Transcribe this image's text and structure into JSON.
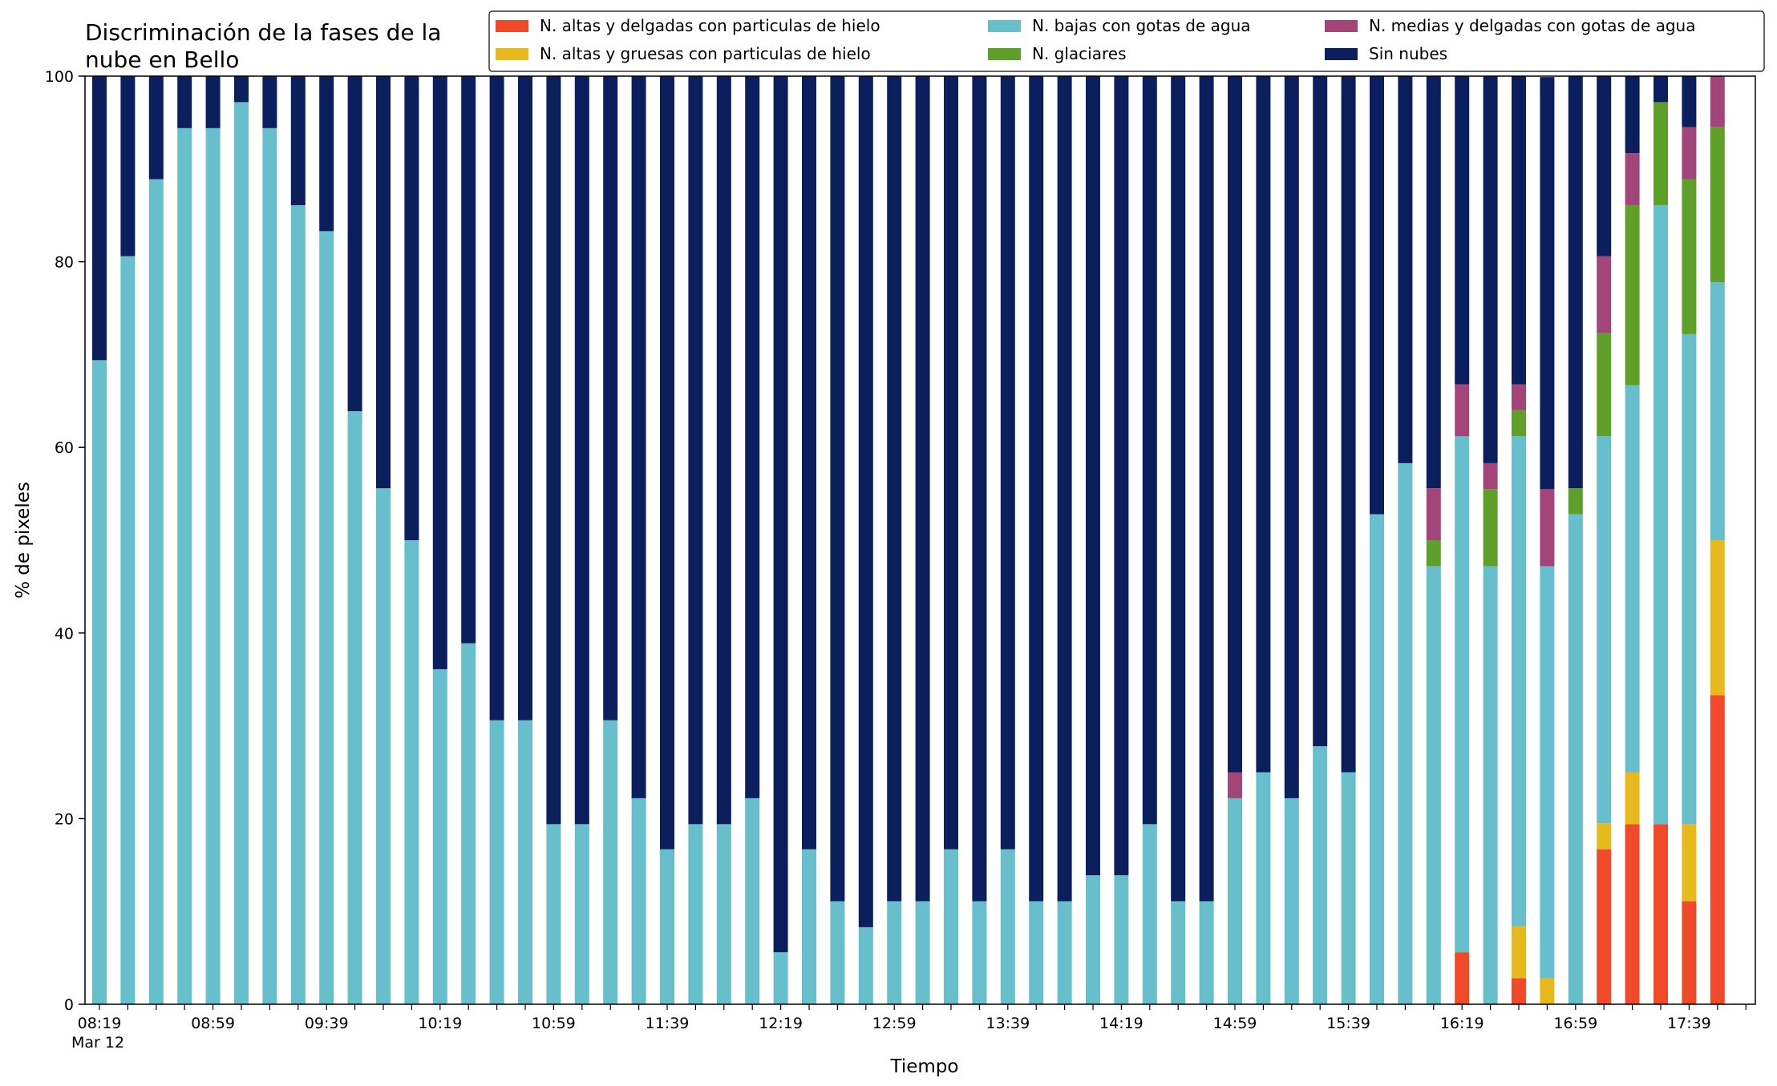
{
  "chart_data": {
    "type": "bar",
    "stacked": true,
    "title_lines": [
      "Discriminación de la fases de la",
      "nube en Bello"
    ],
    "xlabel": "Tiempo",
    "ylabel": "% de pixeles",
    "ylim": [
      0,
      100
    ],
    "yticks": [
      0,
      20,
      40,
      60,
      80,
      100
    ],
    "grid": false,
    "legend_placement": "top-right",
    "x": [
      "08:19",
      "08:29",
      "08:39",
      "08:49",
      "08:59",
      "09:09",
      "09:19",
      "09:29",
      "09:39",
      "09:49",
      "09:59",
      "10:09",
      "10:19",
      "10:29",
      "10:39",
      "10:49",
      "10:59",
      "11:09",
      "11:19",
      "11:29",
      "11:39",
      "11:49",
      "11:59",
      "12:09",
      "12:19",
      "12:29",
      "12:39",
      "12:49",
      "12:59",
      "13:09",
      "13:19",
      "13:29",
      "13:39",
      "13:49",
      "13:59",
      "14:09",
      "14:19",
      "14:29",
      "14:39",
      "14:49",
      "14:59",
      "15:09",
      "15:19",
      "15:29",
      "15:39",
      "15:49",
      "15:59",
      "16:09",
      "16:19",
      "16:29",
      "16:39",
      "16:49",
      "16:59",
      "17:09",
      "17:19",
      "17:29",
      "17:39",
      "17:49"
    ],
    "xtick_labels": [
      {
        "index": 0,
        "label": "08:19",
        "sublabel": "Mar 12"
      },
      {
        "index": 4,
        "label": "08:59"
      },
      {
        "index": 8,
        "label": "09:39"
      },
      {
        "index": 12,
        "label": "10:19"
      },
      {
        "index": 16,
        "label": "10:59"
      },
      {
        "index": 20,
        "label": "11:39"
      },
      {
        "index": 24,
        "label": "12:19"
      },
      {
        "index": 28,
        "label": "12:59"
      },
      {
        "index": 32,
        "label": "13:39"
      },
      {
        "index": 36,
        "label": "14:19"
      },
      {
        "index": 40,
        "label": "14:59"
      },
      {
        "index": 44,
        "label": "15:39"
      },
      {
        "index": 48,
        "label": "16:19"
      },
      {
        "index": 52,
        "label": "16:59"
      },
      {
        "index": 56,
        "label": "17:39"
      }
    ],
    "series": [
      {
        "name": "N. altas y delgadas con particulas de hielo",
        "color": "#f04a2b",
        "values": [
          0,
          0,
          0,
          0,
          0,
          0,
          0,
          0,
          0,
          0,
          0,
          0,
          0,
          0,
          0,
          0,
          0,
          0,
          0,
          0,
          0,
          0,
          0,
          0,
          0,
          0,
          0,
          0,
          0,
          0,
          0,
          0,
          0,
          0,
          0,
          0,
          0,
          0,
          0,
          0,
          0,
          0,
          0,
          0,
          0,
          0,
          0,
          0,
          5.6,
          0,
          2.8,
          0,
          0,
          16.7,
          19.4,
          19.4,
          11.1,
          33.3
        ]
      },
      {
        "name": "N. altas y gruesas con particulas de hielo",
        "color": "#e8b91c",
        "values": [
          0,
          0,
          0,
          0,
          0,
          0,
          0,
          0,
          0,
          0,
          0,
          0,
          0,
          0,
          0,
          0,
          0,
          0,
          0,
          0,
          0,
          0,
          0,
          0,
          0,
          0,
          0,
          0,
          0,
          0,
          0,
          0,
          0,
          0,
          0,
          0,
          0,
          0,
          0,
          0,
          0,
          0,
          0,
          0,
          0,
          0,
          0,
          0,
          0,
          0,
          5.6,
          2.8,
          0,
          2.8,
          5.6,
          0,
          8.3,
          16.7
        ]
      },
      {
        "name": "N. bajas con gotas de agua",
        "color": "#66bfca",
        "values": [
          69.4,
          80.6,
          88.9,
          94.4,
          94.4,
          97.2,
          94.4,
          86.1,
          83.3,
          63.9,
          55.6,
          50,
          36.1,
          38.9,
          30.6,
          30.6,
          19.4,
          19.4,
          30.6,
          22.2,
          16.7,
          19.4,
          19.4,
          22.2,
          5.6,
          16.7,
          11.1,
          8.3,
          11.1,
          11.1,
          16.7,
          11.1,
          16.7,
          11.1,
          11.1,
          13.9,
          13.9,
          19.4,
          11.1,
          11.1,
          22.2,
          25,
          22.2,
          27.8,
          25,
          52.8,
          58.3,
          47.2,
          55.6,
          47.2,
          52.8,
          44.4,
          52.8,
          41.7,
          41.7,
          66.7,
          52.8,
          27.8
        ]
      },
      {
        "name": "N. glaciares",
        "color": "#5fa02a",
        "values": [
          0,
          0,
          0,
          0,
          0,
          0,
          0,
          0,
          0,
          0,
          0,
          0,
          0,
          0,
          0,
          0,
          0,
          0,
          0,
          0,
          0,
          0,
          0,
          0,
          0,
          0,
          0,
          0,
          0,
          0,
          0,
          0,
          0,
          0,
          0,
          0,
          0,
          0,
          0,
          0,
          0,
          0,
          0,
          0,
          0,
          0,
          0,
          2.8,
          0,
          8.3,
          2.8,
          0,
          2.8,
          11.1,
          19.4,
          11.1,
          16.7,
          16.7
        ]
      },
      {
        "name": "N. medias y delgadas con gotas de agua",
        "color": "#a4457a",
        "values": [
          0,
          0,
          0,
          0,
          0,
          0,
          0,
          0,
          0,
          0,
          0,
          0,
          0,
          0,
          0,
          0,
          0,
          0,
          0,
          0,
          0,
          0,
          0,
          0,
          0,
          0,
          0,
          0,
          0,
          0,
          0,
          0,
          0,
          0,
          0,
          0,
          0,
          0,
          0,
          0,
          2.8,
          0,
          0,
          0,
          0,
          0,
          0,
          5.6,
          5.6,
          2.8,
          2.8,
          8.3,
          0,
          8.3,
          5.6,
          0,
          5.6,
          5.6
        ]
      },
      {
        "name": "Sin nubes",
        "color": "#0b1f5e",
        "values": [
          30.6,
          19.4,
          11.1,
          5.6,
          5.6,
          2.8,
          5.6,
          13.9,
          16.7,
          36.1,
          44.4,
          50,
          63.9,
          61.1,
          69.4,
          69.4,
          80.6,
          80.6,
          69.4,
          77.8,
          83.3,
          80.6,
          80.6,
          77.8,
          94.4,
          83.3,
          88.9,
          91.7,
          88.9,
          88.9,
          83.3,
          88.9,
          83.3,
          88.9,
          88.9,
          86.1,
          86.1,
          80.6,
          88.9,
          88.9,
          75,
          75,
          77.8,
          72.2,
          75,
          47.2,
          41.7,
          44.4,
          33.3,
          41.7,
          33.3,
          44.4,
          44.4,
          19.4,
          8.3,
          2.8,
          5.6,
          0
        ]
      }
    ]
  }
}
